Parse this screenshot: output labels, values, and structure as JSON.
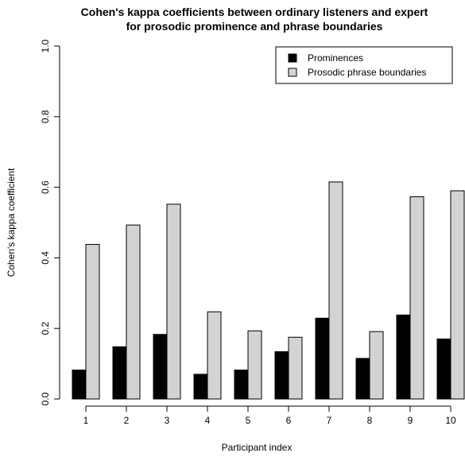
{
  "chart_data": {
    "type": "bar",
    "title": "Cohen's kappa coefficients between ordinary listeners and expert",
    "subtitle": "for prosodic prominence and phrase boundaries",
    "xlabel": "Participant index",
    "ylabel": "Cohen's kappa coefficient",
    "ylim": [
      0.0,
      1.0
    ],
    "yticks": [
      "0.0",
      "0.2",
      "0.4",
      "0.6",
      "0.8",
      "1.0"
    ],
    "categories": [
      "1",
      "2",
      "3",
      "4",
      "5",
      "6",
      "7",
      "8",
      "9",
      "10"
    ],
    "series": [
      {
        "name": "Prominences",
        "color": "#000000",
        "values": [
          0.082,
          0.148,
          0.183,
          0.07,
          0.082,
          0.134,
          0.229,
          0.115,
          0.238,
          0.17
        ]
      },
      {
        "name": "Prosodic phrase boundaries",
        "color": "#d3d3d3",
        "values": [
          0.438,
          0.493,
          0.552,
          0.247,
          0.193,
          0.175,
          0.615,
          0.191,
          0.573,
          0.59
        ]
      }
    ],
    "legend_position": "top-right",
    "grid": false
  }
}
